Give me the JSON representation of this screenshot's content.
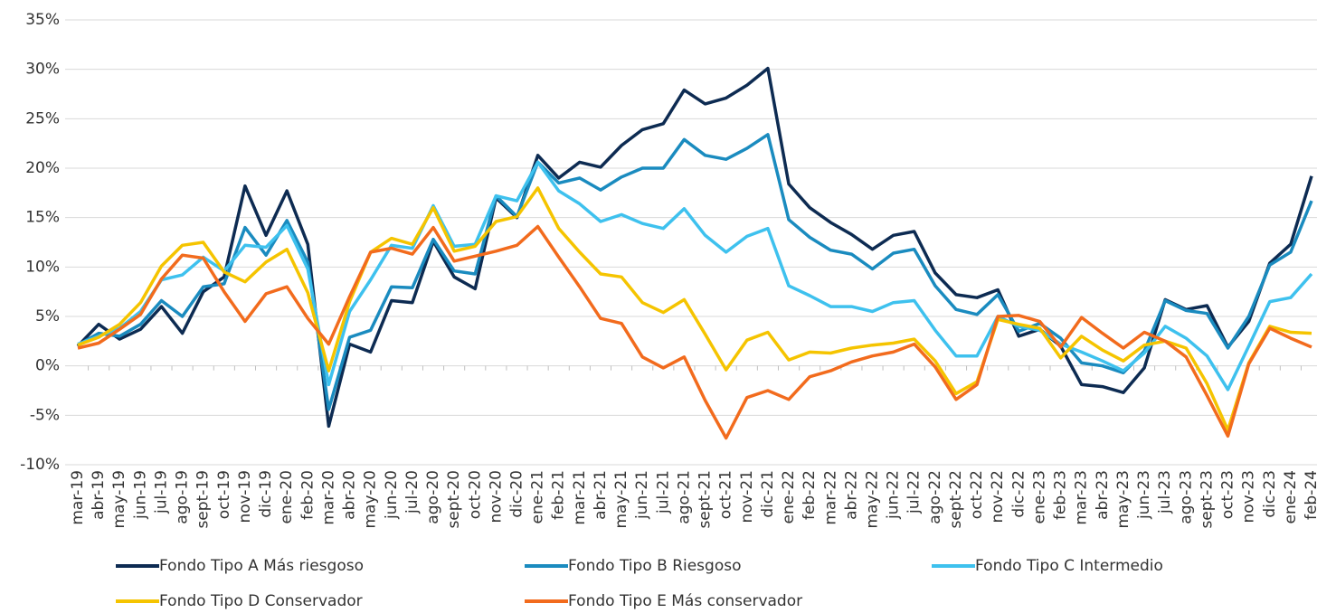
{
  "chart_data": {
    "type": "line",
    "categories": [
      "mar-19",
      "abr-19",
      "may-19",
      "jun-19",
      "jul-19",
      "ago-19",
      "sept-19",
      "oct-19",
      "nov-19",
      "dic-19",
      "ene-20",
      "feb-20",
      "mar-20",
      "abr-20",
      "may-20",
      "jun-20",
      "jul-20",
      "ago-20",
      "sept-20",
      "oct-20",
      "nov-20",
      "dic-20",
      "ene-21",
      "feb-21",
      "mar-21",
      "abr-21",
      "may-21",
      "jun-21",
      "jul-21",
      "ago-21",
      "sept-21",
      "oct-21",
      "nov-21",
      "dic-21",
      "ene-22",
      "feb-22",
      "mar-22",
      "abr-22",
      "may-22",
      "jun-22",
      "jul-22",
      "ago-22",
      "sept-22",
      "oct-22",
      "nov-22",
      "dic-22",
      "ene-23",
      "feb-23",
      "mar-23",
      "abr-23",
      "may-23",
      "jun-23",
      "jul-23",
      "ago-23",
      "sept-23",
      "oct-23",
      "nov-23",
      "dic-23",
      "ene-24",
      "feb-24"
    ],
    "series": [
      {
        "name": "Fondo Tipo A Más riesgoso",
        "color": "#0d2b52",
        "values": [
          2.0,
          4.2,
          2.7,
          3.7,
          6.0,
          3.3,
          7.5,
          9.0,
          18.2,
          13.2,
          17.7,
          12.3,
          -6.1,
          2.2,
          1.4,
          6.6,
          6.4,
          12.6,
          9.0,
          7.8,
          17.0,
          15.0,
          21.3,
          19.0,
          20.6,
          20.1,
          22.3,
          23.9,
          24.5,
          27.9,
          26.5,
          27.1,
          28.4,
          30.1,
          18.4,
          16.0,
          14.5,
          13.3,
          11.8,
          13.2,
          13.6,
          9.4,
          7.2,
          6.9,
          7.7,
          3.0,
          3.7,
          2.0,
          -1.9,
          -2.1,
          -2.7,
          -0.2,
          6.7,
          5.7,
          6.1,
          1.9,
          4.5,
          10.4,
          12.3,
          19.2
        ]
      },
      {
        "name": "Fondo Tipo B Riesgoso",
        "color": "#1a8bbf",
        "values": [
          2.1,
          3.3,
          3.0,
          4.2,
          6.6,
          5.0,
          8.0,
          8.3,
          14.0,
          11.2,
          14.7,
          10.5,
          -4.4,
          2.9,
          3.6,
          8.0,
          7.9,
          12.8,
          9.6,
          9.3,
          17.2,
          15.1,
          20.6,
          18.5,
          19.0,
          17.8,
          19.1,
          20.0,
          20.0,
          22.9,
          21.3,
          20.9,
          22.0,
          23.4,
          14.8,
          13.0,
          11.7,
          11.3,
          9.8,
          11.4,
          11.8,
          8.1,
          5.7,
          5.2,
          7.2,
          3.5,
          4.3,
          2.8,
          0.3,
          0.0,
          -0.7,
          1.5,
          6.6,
          5.6,
          5.3,
          1.8,
          5.0,
          10.2,
          11.5,
          16.7
        ]
      },
      {
        "name": "Fondo Tipo C Intermedio",
        "color": "#3ec1ee",
        "values": [
          2.2,
          3.0,
          3.8,
          5.5,
          8.7,
          9.2,
          11.0,
          9.6,
          12.2,
          12.0,
          14.2,
          9.8,
          -1.9,
          5.5,
          8.7,
          12.2,
          11.9,
          16.2,
          12.1,
          12.3,
          17.2,
          16.7,
          20.6,
          17.7,
          16.4,
          14.6,
          15.3,
          14.4,
          13.9,
          15.9,
          13.2,
          11.5,
          13.1,
          13.9,
          8.1,
          7.1,
          6.0,
          6.0,
          5.5,
          6.4,
          6.6,
          3.6,
          1.0,
          1.0,
          5.0,
          4.0,
          3.6,
          2.2,
          1.4,
          0.5,
          -0.5,
          1.3,
          4.0,
          2.8,
          1.0,
          -2.4,
          2.0,
          6.5,
          6.9,
          9.3
        ]
      },
      {
        "name": "Fondo Tipo D Conservador",
        "color": "#f5c400",
        "values": [
          2.1,
          2.9,
          4.2,
          6.4,
          10.1,
          12.2,
          12.5,
          9.5,
          8.5,
          10.5,
          11.8,
          7.4,
          -0.5,
          6.5,
          11.5,
          12.9,
          12.3,
          16.0,
          11.6,
          12.1,
          14.6,
          15.1,
          18.0,
          13.9,
          11.5,
          9.3,
          9.0,
          6.4,
          5.4,
          6.7,
          3.2,
          -0.4,
          2.6,
          3.4,
          0.6,
          1.4,
          1.3,
          1.8,
          2.1,
          2.3,
          2.7,
          0.5,
          -2.8,
          -1.6,
          4.7,
          4.2,
          3.8,
          0.8,
          3.0,
          1.6,
          0.5,
          2.1,
          2.5,
          1.8,
          -1.8,
          -6.5,
          0.3,
          4.0,
          3.4,
          3.3
        ]
      },
      {
        "name": "Fondo Tipo E Más conservador",
        "color": "#f26b1d",
        "values": [
          1.8,
          2.3,
          3.7,
          5.2,
          8.8,
          11.2,
          10.9,
          7.5,
          4.5,
          7.3,
          8.0,
          4.8,
          2.2,
          7.0,
          11.5,
          11.9,
          11.3,
          14.0,
          10.6,
          11.1,
          11.6,
          12.2,
          14.1,
          11.0,
          8.0,
          4.8,
          4.3,
          0.9,
          -0.2,
          0.9,
          -3.5,
          -7.3,
          -3.2,
          -2.5,
          -3.4,
          -1.1,
          -0.5,
          0.4,
          1.0,
          1.4,
          2.2,
          -0.1,
          -3.4,
          -1.9,
          5.0,
          5.1,
          4.5,
          1.9,
          4.9,
          3.3,
          1.8,
          3.4,
          2.5,
          0.9,
          -3.0,
          -7.1,
          0.2,
          3.8,
          2.8,
          1.9
        ]
      }
    ],
    "ylim": [
      -10,
      35
    ],
    "yticks": [
      {
        "value": -10,
        "label": "-10%"
      },
      {
        "value": -5,
        "label": "-5%"
      },
      {
        "value": 0,
        "label": "0%"
      },
      {
        "value": 5,
        "label": "5%"
      },
      {
        "value": 10,
        "label": "10%"
      },
      {
        "value": 15,
        "label": "15%"
      },
      {
        "value": 20,
        "label": "20%"
      },
      {
        "value": 25,
        "label": "25%"
      },
      {
        "value": 30,
        "label": "30%"
      },
      {
        "value": 35,
        "label": "35%"
      }
    ],
    "grid": true,
    "legend": "bottom"
  }
}
